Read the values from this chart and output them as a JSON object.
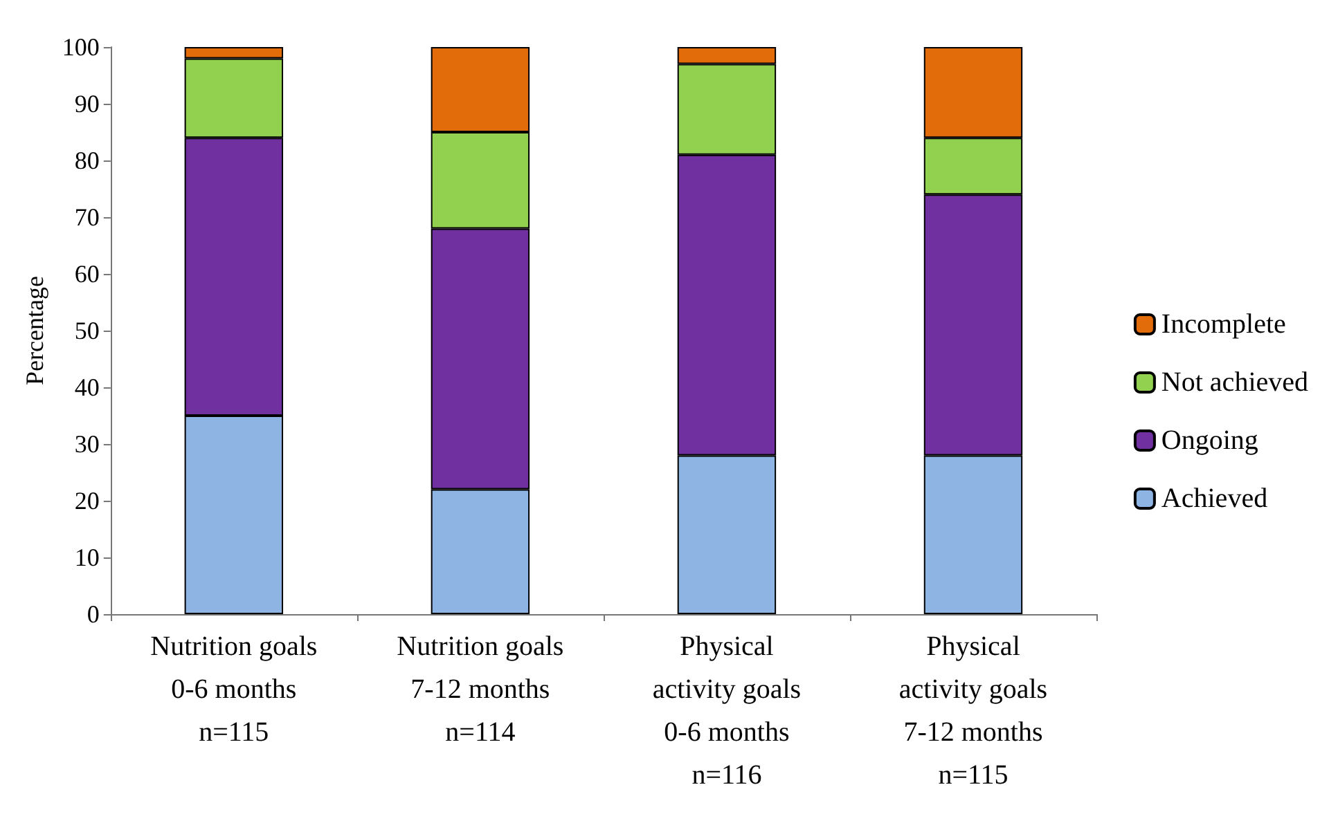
{
  "chart_data": {
    "type": "bar",
    "stacked": true,
    "ylabel": "Percentage",
    "categories": [
      "Nutrition goals\n0-6 months\nn=115",
      "Nutrition goals\n7-12 months\nn=114",
      "Physical\nactivity goals\n0-6 months\nn=116",
      "Physical\nactivity goals\n7-12 months\nn=115"
    ],
    "series": [
      {
        "name": "Achieved",
        "color": "#8eb4e3",
        "values": [
          35,
          22,
          28,
          28
        ]
      },
      {
        "name": "Ongoing",
        "color": "#7030a0",
        "values": [
          49,
          46,
          53,
          46
        ]
      },
      {
        "name": "Not achieved",
        "color": "#92d050",
        "values": [
          14,
          17,
          16,
          10
        ]
      },
      {
        "name": "Incomplete",
        "color": "#e36c0a",
        "values": [
          2,
          15,
          3,
          16
        ]
      }
    ],
    "ylim": [
      0,
      100
    ],
    "yticks": [
      0,
      10,
      20,
      30,
      40,
      50,
      60,
      70,
      80,
      90,
      100
    ],
    "grid": false,
    "legend": "right"
  }
}
